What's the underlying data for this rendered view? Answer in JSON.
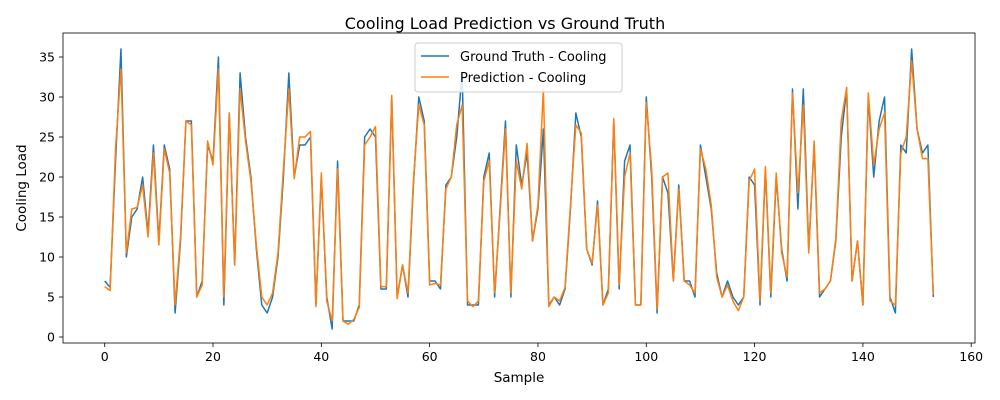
{
  "chart_data": {
    "type": "line",
    "title": "Cooling Load Prediction vs Ground Truth",
    "xlabel": "Sample",
    "ylabel": "Cooling Load",
    "xlim": [
      -7.7,
      160.7
    ],
    "ylim": [
      -0.75,
      38.0
    ],
    "xticks": [
      0,
      20,
      40,
      60,
      80,
      100,
      120,
      140,
      160
    ],
    "yticks": [
      0,
      5,
      10,
      15,
      20,
      25,
      30,
      35
    ],
    "grid": false,
    "legend_position": "top-center",
    "series": [
      {
        "name": "Ground Truth - Cooling",
        "color": "#1f77b4",
        "values": [
          7,
          6.2,
          22,
          36,
          10,
          15,
          16,
          20,
          13,
          24,
          12,
          24,
          21,
          3,
          12,
          27,
          27,
          5,
          7,
          24,
          22,
          35,
          4,
          28,
          9,
          33,
          25,
          20,
          11,
          4,
          3,
          5,
          10,
          20,
          33,
          20,
          24,
          24,
          25,
          4,
          20,
          5,
          1,
          22,
          2,
          2,
          2,
          4,
          25,
          26,
          25,
          6,
          6,
          30,
          5,
          9,
          5,
          19,
          30,
          27,
          7,
          7,
          6,
          19,
          20,
          25,
          33,
          4,
          4,
          4,
          20,
          23,
          5,
          16,
          27,
          5,
          24,
          19,
          23,
          12,
          16,
          26,
          4,
          5,
          4,
          6,
          16,
          28,
          25,
          11,
          9,
          17,
          4,
          6,
          27,
          6,
          22,
          24,
          4,
          4,
          30,
          20,
          3,
          20,
          18,
          7,
          19,
          7,
          7,
          5,
          24,
          20,
          16,
          8,
          5,
          7,
          5,
          4,
          5,
          20,
          19,
          4,
          21,
          5,
          20,
          11,
          7,
          31,
          16,
          31,
          11,
          24,
          5,
          6,
          7,
          12,
          25,
          31,
          7,
          12,
          4,
          30,
          20,
          27,
          30,
          5,
          3,
          24,
          23,
          36,
          26,
          23,
          24,
          5
        ]
      },
      {
        "name": "Prediction - Cooling",
        "color": "#ff7f0e",
        "values": [
          6.3,
          5.8,
          23.5,
          33.5,
          10.5,
          16,
          16.2,
          19,
          12.5,
          23,
          11.5,
          23.5,
          20.5,
          4,
          12.5,
          27,
          26.5,
          5,
          6.5,
          24.5,
          21.5,
          33.5,
          5,
          28,
          9,
          31,
          24.5,
          19.5,
          11.5,
          5,
          4,
          5.5,
          10.5,
          21,
          31,
          19.8,
          25,
          25,
          25.7,
          3.8,
          20.5,
          4.5,
          2,
          21,
          2,
          1.6,
          2.2,
          3.7,
          24,
          25,
          26.3,
          6.3,
          6.3,
          30.2,
          4.8,
          9,
          5.5,
          19.5,
          29,
          26.5,
          6.5,
          6.7,
          6.5,
          18.5,
          20,
          26.5,
          29,
          4.5,
          3.8,
          4.5,
          19.5,
          22,
          5.5,
          15.5,
          26,
          5.5,
          22,
          18.5,
          24.2,
          12,
          16.5,
          31,
          3.8,
          5,
          4.5,
          6.2,
          16.5,
          26.5,
          25.5,
          11,
          9.2,
          16.5,
          4,
          5.5,
          27.3,
          6.5,
          20,
          23,
          4,
          4,
          29.3,
          21,
          3.5,
          20,
          20.5,
          7,
          18.5,
          7,
          6.5,
          5.5,
          23.5,
          21,
          16.5,
          7.5,
          5,
          6.5,
          4.5,
          3.3,
          5,
          19.5,
          21,
          4.5,
          21.3,
          5.5,
          20.5,
          10.5,
          7.5,
          30.5,
          18,
          29,
          10.5,
          24.5,
          5.5,
          6,
          7,
          12.3,
          27,
          31.2,
          7,
          12,
          4,
          30.5,
          21.5,
          26,
          28,
          4.5,
          4,
          23,
          25,
          34.5,
          26,
          22.3,
          22.3,
          5.3
        ]
      }
    ]
  }
}
